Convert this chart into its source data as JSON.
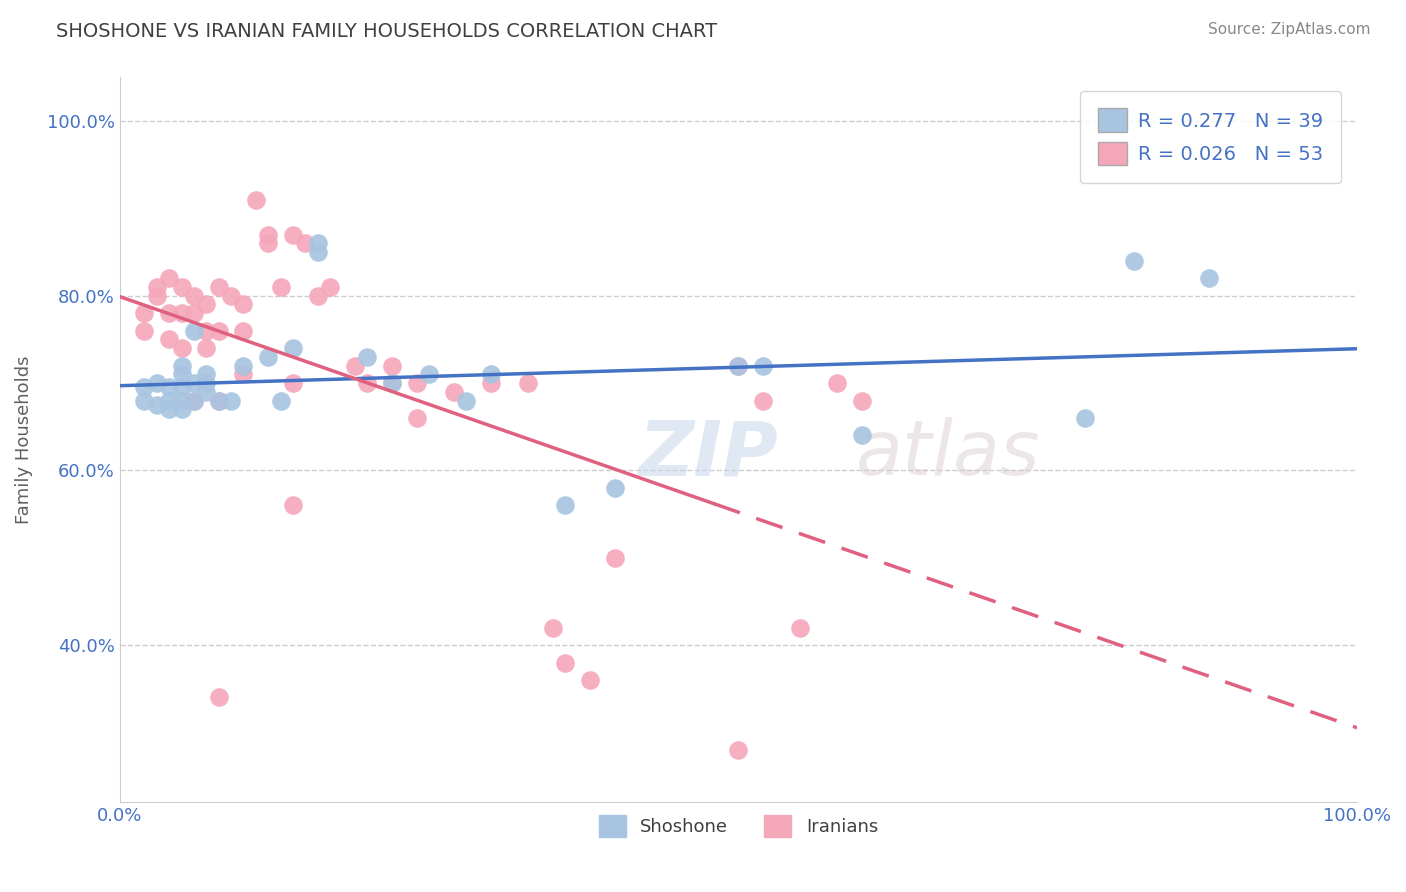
{
  "title": "SHOSHONE VS IRANIAN FAMILY HOUSEHOLDS CORRELATION CHART",
  "source_text": "Source: ZipAtlas.com",
  "ylabel": "Family Households",
  "xlim": [
    0.0,
    1.0
  ],
  "ylim": [
    0.22,
    1.05
  ],
  "yticks": [
    0.4,
    0.6,
    0.8,
    1.0
  ],
  "yticklabels": [
    "40.0%",
    "60.0%",
    "80.0%",
    "100.0%"
  ],
  "xtick_left": "0.0%",
  "xtick_right": "100.0%",
  "shoshone_color": "#a8c4e0",
  "iranian_color": "#f4a7b9",
  "shoshone_line_color": "#4472c4",
  "iranian_line_color": "#e06080",
  "R_shoshone": 0.277,
  "N_shoshone": 39,
  "R_iranian": 0.026,
  "N_iranian": 53,
  "legend_labels": [
    "Shoshone",
    "Iranians"
  ],
  "watermark_zip": "ZIP",
  "watermark_atlas": "atlas",
  "shoshone_x": [
    0.02,
    0.02,
    0.03,
    0.03,
    0.04,
    0.04,
    0.04,
    0.05,
    0.05,
    0.05,
    0.05,
    0.05,
    0.06,
    0.06,
    0.06,
    0.07,
    0.07,
    0.07,
    0.08,
    0.09,
    0.1,
    0.13,
    0.16,
    0.16,
    0.22,
    0.25,
    0.3,
    0.36,
    0.4,
    0.5,
    0.52,
    0.6,
    0.78,
    0.82,
    0.88,
    0.12,
    0.14,
    0.2,
    0.28
  ],
  "shoshone_y": [
    0.695,
    0.68,
    0.7,
    0.675,
    0.68,
    0.695,
    0.67,
    0.72,
    0.71,
    0.695,
    0.68,
    0.67,
    0.76,
    0.7,
    0.68,
    0.71,
    0.7,
    0.69,
    0.68,
    0.68,
    0.72,
    0.68,
    0.85,
    0.86,
    0.7,
    0.71,
    0.71,
    0.56,
    0.58,
    0.72,
    0.72,
    0.64,
    0.66,
    0.84,
    0.82,
    0.73,
    0.74,
    0.73,
    0.68
  ],
  "iranian_x": [
    0.02,
    0.02,
    0.03,
    0.03,
    0.04,
    0.04,
    0.04,
    0.05,
    0.05,
    0.06,
    0.06,
    0.07,
    0.07,
    0.07,
    0.08,
    0.08,
    0.09,
    0.1,
    0.1,
    0.11,
    0.12,
    0.12,
    0.13,
    0.14,
    0.15,
    0.16,
    0.17,
    0.19,
    0.2,
    0.22,
    0.24,
    0.27,
    0.3,
    0.33,
    0.1,
    0.05,
    0.06,
    0.08,
    0.14,
    0.22,
    0.24,
    0.36,
    0.38,
    0.4,
    0.5,
    0.52,
    0.55,
    0.58,
    0.6,
    0.35,
    0.08,
    0.14,
    0.5
  ],
  "iranian_y": [
    0.78,
    0.76,
    0.81,
    0.8,
    0.82,
    0.78,
    0.75,
    0.81,
    0.78,
    0.8,
    0.78,
    0.79,
    0.76,
    0.74,
    0.81,
    0.76,
    0.8,
    0.79,
    0.76,
    0.91,
    0.87,
    0.86,
    0.81,
    0.87,
    0.86,
    0.8,
    0.81,
    0.72,
    0.7,
    0.72,
    0.7,
    0.69,
    0.7,
    0.7,
    0.71,
    0.74,
    0.68,
    0.68,
    0.7,
    0.7,
    0.66,
    0.38,
    0.36,
    0.5,
    0.72,
    0.68,
    0.42,
    0.7,
    0.68,
    0.42,
    0.34,
    0.56,
    0.28
  ],
  "grid_color": "#cccccc",
  "background_color": "#ffffff",
  "title_color": "#404040",
  "title_fontsize": 14,
  "axis_label_color": "#606060",
  "tick_color": "#4472c4"
}
